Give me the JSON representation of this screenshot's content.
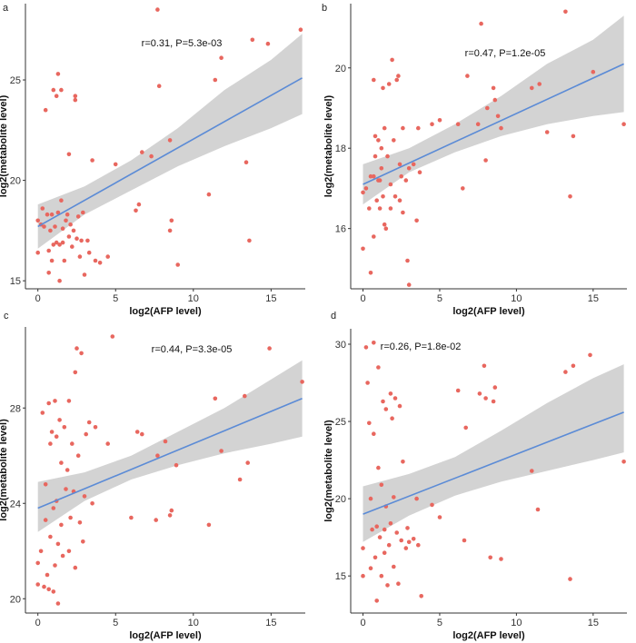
{
  "colors": {
    "point": "#e8675f",
    "fit_line": "#5b8bd6",
    "band": "#d3d3d3"
  },
  "chart_data": [
    {
      "panel": "a",
      "type": "scatter",
      "xlabel": "log2(AFP level)",
      "ylabel": "log2(metabolite level)",
      "annotation": "r=0.31, P=5.3e-03",
      "xlim": [
        -0.8,
        17.2
      ],
      "ylim": [
        14.6,
        28.8
      ],
      "xticks": [
        0,
        5,
        10,
        15
      ],
      "yticks": [
        15,
        20,
        25
      ],
      "fit": {
        "x": [
          0,
          17
        ],
        "y": [
          17.7,
          25.1
        ]
      },
      "band": {
        "x": [
          0,
          3,
          6,
          9,
          12,
          15,
          17
        ],
        "lower": [
          16.6,
          18.3,
          19.5,
          20.7,
          21.7,
          22.6,
          23.3
        ],
        "upper": [
          18.8,
          19.7,
          21.0,
          22.6,
          24.5,
          26.0,
          27.3
        ]
      },
      "points": [
        [
          0,
          16.4
        ],
        [
          0,
          18.0
        ],
        [
          0.2,
          17.8
        ],
        [
          0.3,
          18.6
        ],
        [
          0.4,
          17.7
        ],
        [
          0.5,
          23.5
        ],
        [
          0.6,
          18.3
        ],
        [
          0.7,
          16.5
        ],
        [
          0.7,
          15.4
        ],
        [
          0.8,
          17.5
        ],
        [
          0.9,
          18.3
        ],
        [
          0.9,
          16.0
        ],
        [
          1.0,
          24.5
        ],
        [
          1.0,
          16.8
        ],
        [
          1.1,
          17.7
        ],
        [
          1.2,
          16.9
        ],
        [
          1.2,
          24.2
        ],
        [
          1.3,
          25.3
        ],
        [
          1.3,
          18.4
        ],
        [
          1.4,
          16.8
        ],
        [
          1.4,
          15.0
        ],
        [
          1.5,
          19.0
        ],
        [
          1.5,
          24.5
        ],
        [
          1.6,
          16.9
        ],
        [
          1.6,
          17.6
        ],
        [
          1.7,
          16.0
        ],
        [
          1.8,
          18.0
        ],
        [
          1.9,
          18.3
        ],
        [
          2.0,
          21.3
        ],
        [
          2.0,
          17.2
        ],
        [
          2.1,
          17.8
        ],
        [
          2.2,
          16.7
        ],
        [
          2.3,
          17.5
        ],
        [
          2.4,
          24.2
        ],
        [
          2.4,
          24.0
        ],
        [
          2.5,
          17.1
        ],
        [
          2.6,
          18.2
        ],
        [
          2.7,
          16.2
        ],
        [
          2.8,
          17.0
        ],
        [
          2.9,
          18.4
        ],
        [
          3.0,
          15.3
        ],
        [
          3.2,
          17.0
        ],
        [
          3.3,
          16.4
        ],
        [
          3.5,
          21.0
        ],
        [
          3.7,
          16.0
        ],
        [
          4.0,
          15.9
        ],
        [
          4.5,
          16.2
        ],
        [
          5.0,
          20.8
        ],
        [
          6.3,
          18.5
        ],
        [
          6.5,
          18.8
        ],
        [
          6.7,
          21.4
        ],
        [
          7.3,
          21.2
        ],
        [
          7.7,
          28.5
        ],
        [
          7.8,
          24.7
        ],
        [
          8.5,
          22.0
        ],
        [
          8.5,
          17.5
        ],
        [
          8.6,
          18.0
        ],
        [
          9.0,
          15.8
        ],
        [
          11.0,
          19.3
        ],
        [
          11.4,
          25.0
        ],
        [
          11.8,
          26.1
        ],
        [
          13.4,
          20.9
        ],
        [
          13.6,
          17.0
        ],
        [
          13.8,
          27.0
        ],
        [
          14.8,
          26.8
        ],
        [
          16.9,
          27.5
        ]
      ]
    },
    {
      "panel": "b",
      "type": "scatter",
      "xlabel": "log2(AFP level)",
      "ylabel": "log2(metabolite level)",
      "annotation": "r=0.47, P=1.2e-05",
      "xlim": [
        -0.8,
        17.2
      ],
      "ylim": [
        14.5,
        21.6
      ],
      "xticks": [
        0,
        5,
        10,
        15
      ],
      "yticks": [
        16,
        18,
        20
      ],
      "fit": {
        "x": [
          0,
          17
        ],
        "y": [
          17.1,
          20.1
        ]
      },
      "band": {
        "x": [
          0,
          3,
          6,
          9,
          12,
          15,
          17
        ],
        "lower": [
          16.6,
          17.4,
          17.9,
          18.3,
          18.6,
          18.8,
          18.9
        ],
        "upper": [
          17.6,
          18.0,
          18.6,
          19.3,
          20.1,
          20.7,
          21.3
        ]
      },
      "points": [
        [
          0,
          16.9
        ],
        [
          0,
          15.5
        ],
        [
          0.2,
          17.0
        ],
        [
          0.4,
          16.5
        ],
        [
          0.5,
          17.3
        ],
        [
          0.5,
          14.9
        ],
        [
          0.7,
          17.3
        ],
        [
          0.7,
          19.7
        ],
        [
          0.7,
          15.8
        ],
        [
          0.8,
          18.3
        ],
        [
          0.8,
          17.8
        ],
        [
          0.9,
          16.7
        ],
        [
          1.0,
          17.2
        ],
        [
          1.0,
          18.2
        ],
        [
          1.1,
          16.5
        ],
        [
          1.1,
          17.2
        ],
        [
          1.2,
          18.0
        ],
        [
          1.2,
          17.5
        ],
        [
          1.3,
          16.8
        ],
        [
          1.3,
          19.5
        ],
        [
          1.4,
          16.1
        ],
        [
          1.4,
          18.5
        ],
        [
          1.5,
          16.0
        ],
        [
          1.6,
          17.8
        ],
        [
          1.7,
          19.6
        ],
        [
          1.8,
          16.5
        ],
        [
          1.8,
          17.1
        ],
        [
          1.9,
          20.2
        ],
        [
          2.0,
          18.2
        ],
        [
          2.1,
          16.8
        ],
        [
          2.2,
          19.7
        ],
        [
          2.3,
          19.8
        ],
        [
          2.4,
          17.6
        ],
        [
          2.4,
          16.7
        ],
        [
          2.5,
          17.3
        ],
        [
          2.6,
          18.5
        ],
        [
          2.6,
          16.4
        ],
        [
          2.8,
          17.2
        ],
        [
          2.9,
          15.2
        ],
        [
          3.0,
          17.5
        ],
        [
          3.0,
          14.6
        ],
        [
          3.3,
          17.6
        ],
        [
          3.5,
          16.2
        ],
        [
          3.6,
          18.5
        ],
        [
          3.7,
          17.4
        ],
        [
          4.5,
          18.6
        ],
        [
          5.0,
          18.7
        ],
        [
          6.2,
          18.6
        ],
        [
          6.5,
          17.0
        ],
        [
          6.8,
          19.8
        ],
        [
          7.5,
          18.6
        ],
        [
          7.7,
          21.1
        ],
        [
          8.0,
          17.7
        ],
        [
          8.1,
          19.0
        ],
        [
          8.5,
          19.5
        ],
        [
          8.6,
          19.2
        ],
        [
          8.8,
          18.8
        ],
        [
          9.0,
          18.5
        ],
        [
          11.0,
          19.5
        ],
        [
          11.5,
          19.6
        ],
        [
          12.0,
          18.4
        ],
        [
          13.2,
          21.4
        ],
        [
          13.5,
          16.8
        ],
        [
          13.7,
          18.3
        ],
        [
          15.0,
          19.9
        ],
        [
          17.0,
          18.6
        ]
      ]
    },
    {
      "panel": "c",
      "type": "scatter",
      "xlabel": "log2(AFP level)",
      "ylabel": "log2(metabolite level)",
      "annotation": "r=0.44, P=3.3e-05",
      "xlim": [
        -0.8,
        17.2
      ],
      "ylim": [
        19.4,
        31.4
      ],
      "xticks": [
        0,
        5,
        10,
        15
      ],
      "yticks": [
        20,
        24,
        28
      ],
      "fit": {
        "x": [
          0,
          17
        ],
        "y": [
          23.8,
          28.4
        ]
      },
      "band": {
        "x": [
          0,
          3,
          6,
          9,
          12,
          15,
          17
        ],
        "lower": [
          22.8,
          24.1,
          25.0,
          25.6,
          26.1,
          26.5,
          26.8
        ],
        "upper": [
          24.9,
          25.3,
          26.0,
          27.0,
          28.0,
          29.2,
          30.0
        ]
      },
      "points": [
        [
          0,
          21.5
        ],
        [
          0,
          20.6
        ],
        [
          0.2,
          22.0
        ],
        [
          0.3,
          27.8
        ],
        [
          0.4,
          20.5
        ],
        [
          0.5,
          23.3
        ],
        [
          0.5,
          24.8
        ],
        [
          0.6,
          21.0
        ],
        [
          0.7,
          20.4
        ],
        [
          0.7,
          28.2
        ],
        [
          0.8,
          26.5
        ],
        [
          0.8,
          22.6
        ],
        [
          0.9,
          27.0
        ],
        [
          1.0,
          20.3
        ],
        [
          1.0,
          23.8
        ],
        [
          1.1,
          28.3
        ],
        [
          1.1,
          21.4
        ],
        [
          1.2,
          26.8
        ],
        [
          1.2,
          24.1
        ],
        [
          1.3,
          19.8
        ],
        [
          1.3,
          22.3
        ],
        [
          1.4,
          27.5
        ],
        [
          1.5,
          25.7
        ],
        [
          1.5,
          23.1
        ],
        [
          1.6,
          21.8
        ],
        [
          1.7,
          27.2
        ],
        [
          1.8,
          24.6
        ],
        [
          1.9,
          25.4
        ],
        [
          2.0,
          22.0
        ],
        [
          2.0,
          28.3
        ],
        [
          2.1,
          23.4
        ],
        [
          2.2,
          26.5
        ],
        [
          2.3,
          24.5
        ],
        [
          2.4,
          29.5
        ],
        [
          2.4,
          21.3
        ],
        [
          2.5,
          30.5
        ],
        [
          2.6,
          26.0
        ],
        [
          2.7,
          23.2
        ],
        [
          2.8,
          30.3
        ],
        [
          2.9,
          22.4
        ],
        [
          3.0,
          24.3
        ],
        [
          3.1,
          26.9
        ],
        [
          3.3,
          27.4
        ],
        [
          3.5,
          24.0
        ],
        [
          3.7,
          27.2
        ],
        [
          4.5,
          26.5
        ],
        [
          4.8,
          31.0
        ],
        [
          6.0,
          23.4
        ],
        [
          6.4,
          27.0
        ],
        [
          6.7,
          26.9
        ],
        [
          7.6,
          23.3
        ],
        [
          7.7,
          26.0
        ],
        [
          8.2,
          26.6
        ],
        [
          8.5,
          23.5
        ],
        [
          8.6,
          23.7
        ],
        [
          8.9,
          25.6
        ],
        [
          11.0,
          23.1
        ],
        [
          11.4,
          28.4
        ],
        [
          11.8,
          26.2
        ],
        [
          13.0,
          25.0
        ],
        [
          13.3,
          28.5
        ],
        [
          13.5,
          25.7
        ],
        [
          14.9,
          30.5
        ],
        [
          17.0,
          29.1
        ]
      ]
    },
    {
      "panel": "d",
      "type": "scatter",
      "xlabel": "log2(AFP level)",
      "ylabel": "log2(metabolite level)",
      "annotation": "r=0.26, P=1.8e-02",
      "xlim": [
        -0.8,
        17.2
      ],
      "ylim": [
        12.6,
        31.0
      ],
      "xticks": [
        0,
        5,
        10,
        15
      ],
      "yticks": [
        15,
        20,
        25,
        30
      ],
      "fit": {
        "x": [
          0,
          17
        ],
        "y": [
          19.0,
          25.6
        ]
      },
      "band": {
        "x": [
          0,
          3,
          6,
          9,
          12,
          15,
          17
        ],
        "lower": [
          17.2,
          18.9,
          20.2,
          21.1,
          21.8,
          22.5,
          23.0
        ],
        "upper": [
          20.8,
          21.6,
          22.7,
          24.4,
          26.2,
          27.8,
          28.7
        ]
      },
      "points": [
        [
          0,
          15.0
        ],
        [
          0,
          16.8
        ],
        [
          0.2,
          29.8
        ],
        [
          0.3,
          27.5
        ],
        [
          0.4,
          24.9
        ],
        [
          0.5,
          15.5
        ],
        [
          0.5,
          20.0
        ],
        [
          0.6,
          18.0
        ],
        [
          0.7,
          30.1
        ],
        [
          0.7,
          24.2
        ],
        [
          0.8,
          16.2
        ],
        [
          0.9,
          18.2
        ],
        [
          0.9,
          13.4
        ],
        [
          1.0,
          22.0
        ],
        [
          1.0,
          28.5
        ],
        [
          1.1,
          17.5
        ],
        [
          1.2,
          20.9
        ],
        [
          1.2,
          15.0
        ],
        [
          1.3,
          26.3
        ],
        [
          1.4,
          18.0
        ],
        [
          1.4,
          16.5
        ],
        [
          1.5,
          25.8
        ],
        [
          1.5,
          19.5
        ],
        [
          1.6,
          14.4
        ],
        [
          1.7,
          17.0
        ],
        [
          1.8,
          26.8
        ],
        [
          1.8,
          18.4
        ],
        [
          1.9,
          25.2
        ],
        [
          2.0,
          20.1
        ],
        [
          2.0,
          15.6
        ],
        [
          2.1,
          26.5
        ],
        [
          2.2,
          17.8
        ],
        [
          2.3,
          14.5
        ],
        [
          2.4,
          26.0
        ],
        [
          2.5,
          17.3
        ],
        [
          2.6,
          22.4
        ],
        [
          2.8,
          16.8
        ],
        [
          2.9,
          18.1
        ],
        [
          3.0,
          17.2
        ],
        [
          3.3,
          17.4
        ],
        [
          3.5,
          20.0
        ],
        [
          3.6,
          17.0
        ],
        [
          3.8,
          13.7
        ],
        [
          4.5,
          19.6
        ],
        [
          5.0,
          18.8
        ],
        [
          6.2,
          27.0
        ],
        [
          6.6,
          17.3
        ],
        [
          6.7,
          24.6
        ],
        [
          7.6,
          26.8
        ],
        [
          7.9,
          28.6
        ],
        [
          8.0,
          26.5
        ],
        [
          8.3,
          16.2
        ],
        [
          8.5,
          26.3
        ],
        [
          8.6,
          27.2
        ],
        [
          9.0,
          16.1
        ],
        [
          11.0,
          21.8
        ],
        [
          11.4,
          19.3
        ],
        [
          13.2,
          28.2
        ],
        [
          13.5,
          14.8
        ],
        [
          13.7,
          28.6
        ],
        [
          14.8,
          29.3
        ],
        [
          17.0,
          22.4
        ]
      ]
    }
  ]
}
